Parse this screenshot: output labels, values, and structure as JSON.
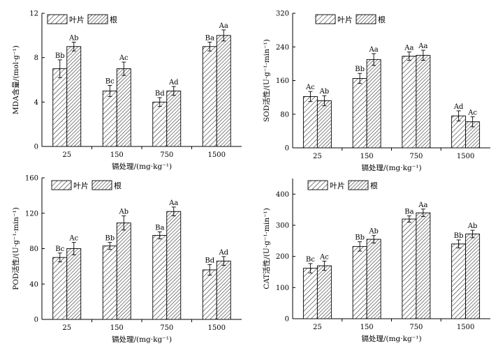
{
  "chart_data": [
    {
      "type": "bar",
      "title": "",
      "ylabel": "MDA含量/(mol·g⁻¹)",
      "xlabel": "镉处理/(mg·kg⁻¹)",
      "categories": [
        "25",
        "150",
        "750",
        "1500"
      ],
      "ylim": [
        0,
        12
      ],
      "yticks": [
        "0",
        "4",
        "8",
        "12"
      ],
      "legend": {
        "position": "top-left",
        "entries": [
          "叶片",
          "根"
        ]
      },
      "series": [
        {
          "name": "叶片",
          "values": [
            7.0,
            5.0,
            4.0,
            9.0
          ],
          "errors": [
            0.8,
            0.5,
            0.4,
            0.4
          ],
          "labels": [
            "Bb",
            "Bc",
            "Bd",
            "Ba"
          ]
        },
        {
          "name": "根",
          "values": [
            9.0,
            7.0,
            5.0,
            10.0
          ],
          "errors": [
            0.4,
            0.6,
            0.4,
            0.5
          ],
          "labels": [
            "Ab",
            "Ac",
            "Ad",
            "Aa"
          ]
        }
      ]
    },
    {
      "type": "bar",
      "title": "",
      "ylabel": "SOD活性/(U·g⁻¹·min⁻¹)",
      "xlabel": "镉处理/(mg·kg⁻¹)",
      "categories": [
        "25",
        "150",
        "750",
        "1500"
      ],
      "ylim": [
        0,
        320
      ],
      "yticks": [
        "0",
        "80",
        "160",
        "240",
        "320"
      ],
      "legend": {
        "position": "top-right",
        "entries": [
          "叶片",
          "根"
        ]
      },
      "series": [
        {
          "name": "叶片",
          "values": [
            122,
            165,
            218,
            76
          ],
          "errors": [
            12,
            12,
            10,
            12
          ],
          "labels": [
            "Ac",
            "Bb",
            "Aa",
            "Ad"
          ]
        },
        {
          "name": "根",
          "values": [
            112,
            210,
            220,
            62
          ],
          "errors": [
            12,
            14,
            12,
            12
          ],
          "labels": [
            "Ab",
            "Aa",
            "Aa",
            "Ac"
          ]
        }
      ]
    },
    {
      "type": "bar",
      "title": "",
      "ylabel": "POD活性/(U·g⁻¹·min⁻¹)",
      "xlabel": "镉处理/(mg·kg⁻¹)",
      "categories": [
        "25",
        "150",
        "750",
        "1500"
      ],
      "ylim": [
        0,
        160
      ],
      "yticks": [
        "0",
        "40",
        "80",
        "120",
        "160"
      ],
      "legend": {
        "position": "top-left",
        "entries": [
          "叶片",
          "根"
        ]
      },
      "series": [
        {
          "name": "叶片",
          "values": [
            70,
            83,
            95,
            56
          ],
          "errors": [
            5,
            4,
            4,
            6
          ],
          "labels": [
            "Bc",
            "Bb",
            "Ba",
            "Bd"
          ]
        },
        {
          "name": "根",
          "values": [
            80,
            109,
            122,
            66
          ],
          "errors": [
            7,
            8,
            5,
            5
          ],
          "labels": [
            "Ac",
            "Ab",
            "Aa",
            "Ad"
          ]
        }
      ]
    },
    {
      "type": "bar",
      "title": "",
      "ylabel": "CAT活性/(U·g⁻¹·min⁻¹)",
      "xlabel": "镉处理/(mg·kg⁻¹)",
      "categories": [
        "25",
        "150",
        "750",
        "1500"
      ],
      "ylim": [
        0,
        450
      ],
      "yticks": [
        "0",
        "100",
        "200",
        "300",
        "400"
      ],
      "legend": {
        "position": "top-left",
        "entries": [
          "叶片",
          "根"
        ]
      },
      "series": [
        {
          "name": "叶片",
          "values": [
            162,
            232,
            320,
            240
          ],
          "errors": [
            15,
            15,
            10,
            13
          ],
          "labels": [
            "Bc",
            "Bb",
            "Ba",
            "Bb"
          ]
        },
        {
          "name": "根",
          "values": [
            170,
            255,
            340,
            272
          ],
          "errors": [
            15,
            12,
            12,
            12
          ],
          "labels": [
            "Ac",
            "Ab",
            "Aa",
            "Ab"
          ]
        }
      ]
    }
  ]
}
